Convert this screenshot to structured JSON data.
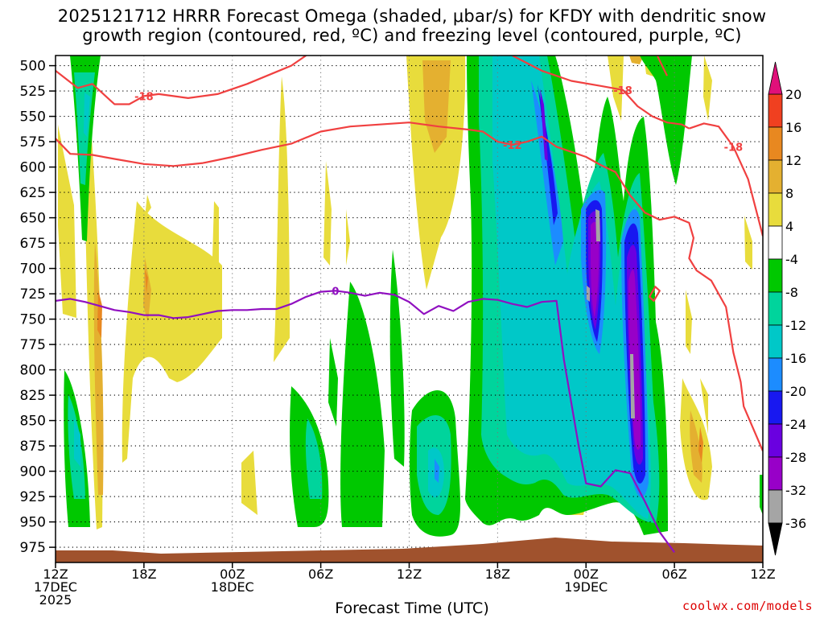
{
  "title_line1": "2025121712 HRRR Forecast Omega (shaded, μbar/s) for KFDY with dendritic snow",
  "title_line2": "growth region (contoured, red, ºC) and freezing level (contoured, purple, ºC)",
  "credit": "coolwx.com/models",
  "chart_data": {
    "type": "heatmap",
    "title": "2025121712 HRRR Forecast Omega (shaded, μbar/s) for KFDY with dendritic snow growth region (contoured, red, ºC) and freezing level (contoured, purple, ºC)",
    "xlabel": "Forecast Time (UTC)",
    "ylabel": "",
    "x_range_hours": [
      0,
      48
    ],
    "y_range_hpa": [
      490,
      990
    ],
    "x_ticks": [
      {
        "hour": 0,
        "l1": "12Z",
        "l2": "17DEC",
        "l3": "2025"
      },
      {
        "hour": 6,
        "l1": "18Z",
        "l2": "",
        "l3": ""
      },
      {
        "hour": 12,
        "l1": "00Z",
        "l2": "18DEC",
        "l3": ""
      },
      {
        "hour": 18,
        "l1": "06Z",
        "l2": "",
        "l3": ""
      },
      {
        "hour": 24,
        "l1": "12Z",
        "l2": "",
        "l3": ""
      },
      {
        "hour": 30,
        "l1": "18Z",
        "l2": "",
        "l3": ""
      },
      {
        "hour": 36,
        "l1": "00Z",
        "l2": "19DEC",
        "l3": ""
      },
      {
        "hour": 42,
        "l1": "06Z",
        "l2": "",
        "l3": ""
      },
      {
        "hour": 48,
        "l1": "12Z",
        "l2": "",
        "l3": ""
      }
    ],
    "y_ticks": [
      500,
      525,
      550,
      575,
      600,
      625,
      650,
      675,
      700,
      725,
      750,
      775,
      800,
      825,
      850,
      875,
      900,
      925,
      950,
      975
    ],
    "colorbar": {
      "labels": [
        "20",
        "16",
        "12",
        "8",
        "4",
        "-4",
        "-8",
        "-12",
        "-16",
        "-20",
        "-24",
        "-28",
        "-32",
        "-36"
      ],
      "bins": [
        {
          "lo": -36,
          "hi": -32,
          "color": "#a5a5a5"
        },
        {
          "lo": -32,
          "hi": -28,
          "color": "#9800c8"
        },
        {
          "lo": -28,
          "hi": -24,
          "color": "#6a00e0"
        },
        {
          "lo": -24,
          "hi": -20,
          "color": "#1818f0"
        },
        {
          "lo": -20,
          "hi": -16,
          "color": "#1c8cff"
        },
        {
          "lo": -16,
          "hi": -12,
          "color": "#00c8c8"
        },
        {
          "lo": -12,
          "hi": -8,
          "color": "#00d49c"
        },
        {
          "lo": -8,
          "hi": -4,
          "color": "#00c800"
        },
        {
          "lo": -4,
          "hi": 4,
          "color": "#ffffff"
        },
        {
          "lo": 4,
          "hi": 8,
          "color": "#e8dc3c"
        },
        {
          "lo": 8,
          "hi": 12,
          "color": "#e4b030"
        },
        {
          "lo": 12,
          "hi": 16,
          "color": "#e88820"
        },
        {
          "lo": 16,
          "hi": 20,
          "color": "#f04020"
        }
      ],
      "top_color": "#e0107a",
      "bottom_color": "#000000"
    },
    "contours": [
      {
        "label": "-18",
        "color": "#f04040",
        "points": [
          [
            0,
            505
          ],
          [
            1.5,
            522
          ],
          [
            2.5,
            518
          ],
          [
            4,
            538
          ],
          [
            5,
            538
          ],
          [
            6,
            530
          ],
          [
            7,
            528
          ],
          [
            9,
            532
          ],
          [
            11,
            528
          ],
          [
            13,
            518
          ],
          [
            15,
            506
          ],
          [
            16,
            500
          ],
          [
            17,
            490
          ]
        ]
      },
      {
        "label": "-18",
        "color": "#f04040",
        "points": [
          [
            31,
            490
          ],
          [
            33,
            505
          ],
          [
            35,
            515
          ],
          [
            37,
            520
          ],
          [
            38.5,
            524
          ],
          [
            39.5,
            540
          ],
          [
            40.5,
            550
          ],
          [
            41.5,
            556
          ],
          [
            42.5,
            558
          ],
          [
            43,
            562
          ]
        ]
      },
      {
        "label": "-12",
        "color": "#f04040",
        "points": [
          [
            0,
            572
          ],
          [
            1,
            587
          ],
          [
            2.5,
            588
          ],
          [
            4,
            592
          ],
          [
            6,
            597
          ],
          [
            8,
            599
          ],
          [
            10,
            596
          ],
          [
            12,
            590
          ],
          [
            14,
            583
          ],
          [
            16,
            577
          ],
          [
            18,
            565
          ],
          [
            20,
            560
          ],
          [
            22,
            558
          ],
          [
            24,
            556
          ],
          [
            26,
            560
          ],
          [
            28,
            563
          ],
          [
            29,
            565
          ],
          [
            30,
            575
          ],
          [
            31,
            578
          ],
          [
            32,
            575
          ],
          [
            33,
            570
          ],
          [
            34,
            580
          ],
          [
            35,
            585
          ],
          [
            36,
            590
          ],
          [
            37,
            598
          ],
          [
            38,
            605
          ],
          [
            39,
            628
          ],
          [
            40,
            645
          ],
          [
            41,
            652
          ],
          [
            42,
            649
          ],
          [
            43,
            655
          ],
          [
            43.3,
            670
          ],
          [
            43,
            690
          ],
          [
            43.5,
            702
          ],
          [
            44.5,
            712
          ],
          [
            45.5,
            738
          ],
          [
            46,
            783
          ],
          [
            46.5,
            812
          ],
          [
            46.7,
            836
          ],
          [
            48,
            880
          ]
        ]
      },
      {
        "label": "-18",
        "color": "#f04040",
        "points": [
          [
            43,
            562
          ],
          [
            44,
            557
          ],
          [
            45,
            560
          ],
          [
            46,
            580
          ],
          [
            47,
            612
          ],
          [
            48,
            668
          ]
        ]
      },
      {
        "label": "0",
        "color": "#9010c0",
        "points": [
          [
            0,
            732
          ],
          [
            1,
            730
          ],
          [
            2,
            733
          ],
          [
            3,
            737
          ],
          [
            4,
            741
          ],
          [
            5,
            743
          ],
          [
            6,
            746
          ],
          [
            7,
            746
          ],
          [
            8,
            749
          ],
          [
            9,
            748
          ],
          [
            10,
            745
          ],
          [
            11,
            742
          ],
          [
            12,
            741
          ],
          [
            13,
            741
          ],
          [
            14,
            740
          ],
          [
            15,
            740
          ],
          [
            16,
            735
          ],
          [
            17,
            728
          ],
          [
            18,
            723
          ],
          [
            19,
            722
          ],
          [
            20,
            724
          ],
          [
            21,
            727
          ],
          [
            22,
            724
          ],
          [
            23,
            726
          ],
          [
            24,
            733
          ],
          [
            25,
            745
          ],
          [
            26,
            737
          ],
          [
            27,
            742
          ],
          [
            28,
            733
          ],
          [
            29,
            730
          ],
          [
            30,
            731
          ],
          [
            31,
            735
          ],
          [
            32,
            738
          ],
          [
            33,
            733
          ],
          [
            34,
            732
          ],
          [
            34.5,
            790
          ],
          [
            35.5,
            875
          ],
          [
            36,
            912
          ],
          [
            37,
            915
          ],
          [
            38,
            899
          ],
          [
            39,
            902
          ],
          [
            40,
            930
          ],
          [
            41,
            960
          ],
          [
            42,
            980
          ]
        ]
      },
      {
        "label": "",
        "color": "#f04040",
        "points": [
          [
            40.3,
            728
          ],
          [
            40.7,
            718
          ],
          [
            41,
            722
          ],
          [
            40.6,
            732
          ],
          [
            40.3,
            728
          ]
        ]
      },
      {
        "label": "",
        "color": "#f04040",
        "points": [
          [
            40.5,
            480
          ],
          [
            41,
            495
          ],
          [
            41.5,
            510
          ]
        ]
      }
    ],
    "terrain_top_hpa": 978
  }
}
